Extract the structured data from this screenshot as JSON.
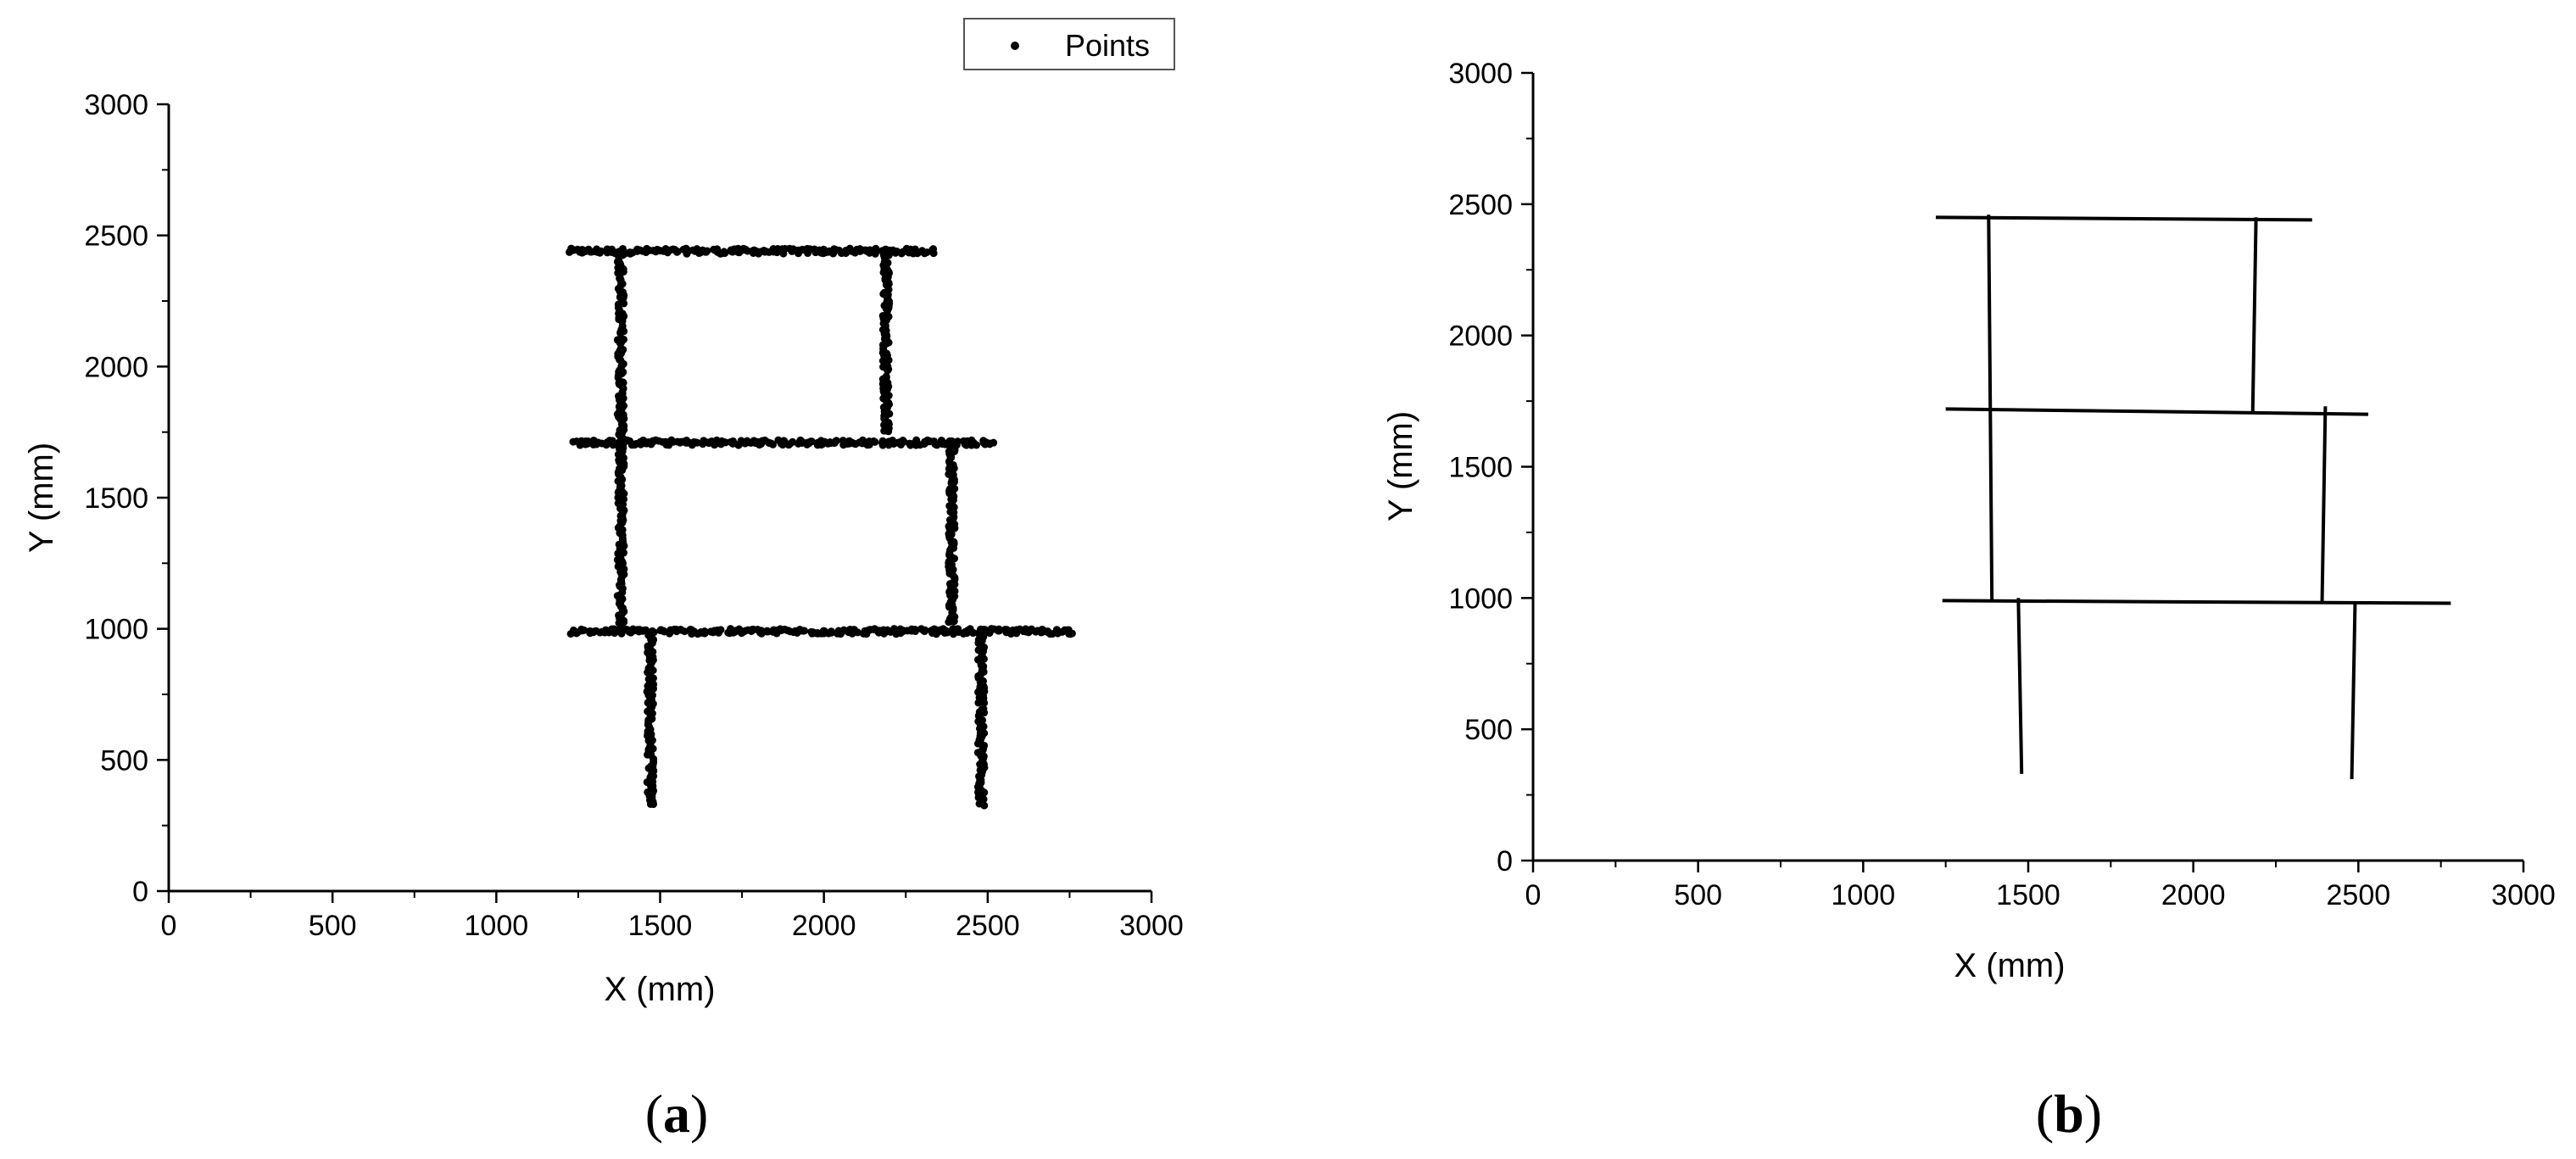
{
  "chart_data": [
    {
      "panel": "a",
      "type": "scatter",
      "xlabel": "X (mm)",
      "ylabel": "Y (mm)",
      "xlim": [
        0,
        3000
      ],
      "ylim": [
        0,
        3000
      ],
      "xticks": [
        "0",
        "500",
        "1000",
        "1500",
        "2000",
        "2500",
        "3000"
      ],
      "yticks": [
        "0",
        "500",
        "1000",
        "1500",
        "2000",
        "2500",
        "3000"
      ],
      "legend": {
        "label": "Points",
        "position": "top-right"
      },
      "panel_label": {
        "open": "(",
        "letter": "a",
        "close": ")"
      },
      "point_segments": [
        {
          "x1": 1220,
          "y1": 2440,
          "x2": 2340,
          "y2": 2440
        },
        {
          "x1": 1380,
          "y1": 2440,
          "x2": 1380,
          "y2": 1720
        },
        {
          "x1": 2190,
          "y1": 2440,
          "x2": 2190,
          "y2": 1750
        },
        {
          "x1": 1240,
          "y1": 1710,
          "x2": 2520,
          "y2": 1710
        },
        {
          "x1": 1380,
          "y1": 1710,
          "x2": 1380,
          "y2": 1010
        },
        {
          "x1": 2390,
          "y1": 1710,
          "x2": 2390,
          "y2": 1010
        },
        {
          "x1": 1230,
          "y1": 990,
          "x2": 2760,
          "y2": 990
        },
        {
          "x1": 1470,
          "y1": 990,
          "x2": 1470,
          "y2": 330
        },
        {
          "x1": 2480,
          "y1": 990,
          "x2": 2480,
          "y2": 330
        }
      ]
    },
    {
      "panel": "b",
      "type": "line",
      "xlabel": "X (mm)",
      "ylabel": "Y (mm)",
      "xlim": [
        0,
        3000
      ],
      "ylim": [
        0,
        3000
      ],
      "xticks": [
        "0",
        "500",
        "1000",
        "1500",
        "2000",
        "2500",
        "3000"
      ],
      "yticks": [
        "0",
        "500",
        "1000",
        "1500",
        "2000",
        "2500",
        "3000"
      ],
      "panel_label": {
        "open": "(",
        "letter": "b",
        "close": ")"
      },
      "line_segments": [
        {
          "x1": 1220,
          "y1": 2450,
          "x2": 2360,
          "y2": 2440
        },
        {
          "x1": 1380,
          "y1": 2460,
          "x2": 1390,
          "y2": 990
        },
        {
          "x1": 2190,
          "y1": 2450,
          "x2": 2180,
          "y2": 1710
        },
        {
          "x1": 1250,
          "y1": 1720,
          "x2": 2530,
          "y2": 1700
        },
        {
          "x1": 2400,
          "y1": 1730,
          "x2": 2390,
          "y2": 980
        },
        {
          "x1": 1240,
          "y1": 990,
          "x2": 2780,
          "y2": 980
        },
        {
          "x1": 1470,
          "y1": 1000,
          "x2": 1480,
          "y2": 330
        },
        {
          "x1": 2490,
          "y1": 980,
          "x2": 2480,
          "y2": 310
        }
      ]
    }
  ]
}
